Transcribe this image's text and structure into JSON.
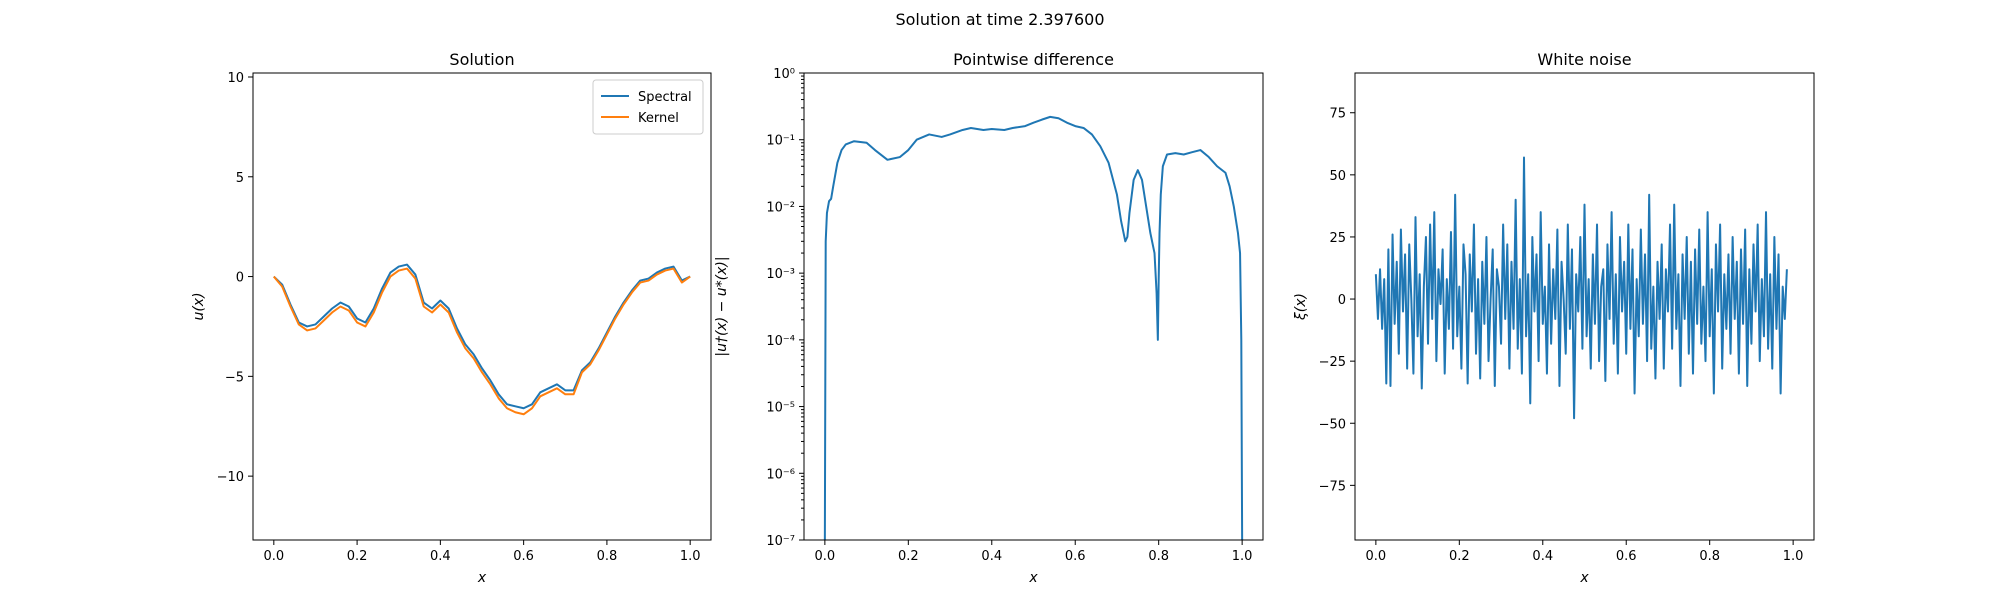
{
  "figure": {
    "title": "Solution at time 2.397600"
  },
  "chart_data": [
    {
      "type": "line",
      "title": "Solution",
      "xlabel": "x",
      "ylabel": "u(x)",
      "xlim": [
        -0.05,
        1.05
      ],
      "ylim": [
        -13.2,
        10.2
      ],
      "xticks": [
        0.0,
        0.2,
        0.4,
        0.6,
        0.8,
        1.0
      ],
      "xtick_labels": [
        "0.0",
        "0.2",
        "0.4",
        "0.6",
        "0.8",
        "1.0"
      ],
      "yticks": [
        -10,
        -5,
        0,
        5,
        10
      ],
      "ytick_labels": [
        "−10",
        "−5",
        "0",
        "5",
        "10"
      ],
      "grid": false,
      "legend": "top-right",
      "series": [
        {
          "name": "Spectral",
          "color": "#1f77b4",
          "x": [
            0.0,
            0.02,
            0.04,
            0.06,
            0.08,
            0.1,
            0.12,
            0.14,
            0.16,
            0.18,
            0.2,
            0.22,
            0.24,
            0.26,
            0.28,
            0.3,
            0.32,
            0.34,
            0.36,
            0.38,
            0.4,
            0.42,
            0.44,
            0.46,
            0.48,
            0.5,
            0.52,
            0.54,
            0.56,
            0.58,
            0.6,
            0.62,
            0.64,
            0.66,
            0.68,
            0.7,
            0.72,
            0.74,
            0.76,
            0.78,
            0.8,
            0.82,
            0.84,
            0.86,
            0.88,
            0.9,
            0.92,
            0.94,
            0.96,
            0.98,
            1.0
          ],
          "values": [
            0.0,
            -0.4,
            -1.4,
            -2.3,
            -2.5,
            -2.4,
            -2.0,
            -1.6,
            -1.3,
            -1.5,
            -2.1,
            -2.3,
            -1.6,
            -0.6,
            0.2,
            0.5,
            0.6,
            0.1,
            -1.3,
            -1.6,
            -1.2,
            -1.6,
            -2.6,
            -3.4,
            -3.9,
            -4.6,
            -5.2,
            -5.9,
            -6.4,
            -6.5,
            -6.6,
            -6.4,
            -5.8,
            -5.6,
            -5.4,
            -5.7,
            -5.7,
            -4.7,
            -4.3,
            -3.6,
            -2.8,
            -2.0,
            -1.3,
            -0.7,
            -0.2,
            -0.1,
            0.2,
            0.4,
            0.5,
            -0.2,
            0.0
          ]
        },
        {
          "name": "Kernel",
          "color": "#ff7f0e",
          "x": [
            0.0,
            0.02,
            0.04,
            0.06,
            0.08,
            0.1,
            0.12,
            0.14,
            0.16,
            0.18,
            0.2,
            0.22,
            0.24,
            0.26,
            0.28,
            0.3,
            0.32,
            0.34,
            0.36,
            0.38,
            0.4,
            0.42,
            0.44,
            0.46,
            0.48,
            0.5,
            0.52,
            0.54,
            0.56,
            0.58,
            0.6,
            0.62,
            0.64,
            0.66,
            0.68,
            0.7,
            0.72,
            0.74,
            0.76,
            0.78,
            0.8,
            0.82,
            0.84,
            0.86,
            0.88,
            0.9,
            0.92,
            0.94,
            0.96,
            0.98,
            1.0
          ],
          "values": [
            0.0,
            -0.5,
            -1.5,
            -2.4,
            -2.7,
            -2.6,
            -2.2,
            -1.8,
            -1.5,
            -1.7,
            -2.3,
            -2.5,
            -1.8,
            -0.8,
            0.0,
            0.3,
            0.4,
            -0.1,
            -1.5,
            -1.8,
            -1.4,
            -1.8,
            -2.8,
            -3.6,
            -4.1,
            -4.8,
            -5.4,
            -6.1,
            -6.6,
            -6.8,
            -6.9,
            -6.6,
            -6.0,
            -5.8,
            -5.6,
            -5.9,
            -5.9,
            -4.8,
            -4.4,
            -3.7,
            -2.9,
            -2.1,
            -1.4,
            -0.8,
            -0.3,
            -0.2,
            0.1,
            0.3,
            0.4,
            -0.3,
            0.0
          ]
        }
      ]
    },
    {
      "type": "line",
      "title": "Pointwise difference",
      "xlabel": "x",
      "ylabel": "|u†(x) − u*(x)|",
      "yscale": "log",
      "xlim": [
        -0.05,
        1.05
      ],
      "ylim": [
        1e-07,
        1
      ],
      "xticks": [
        0.0,
        0.2,
        0.4,
        0.6,
        0.8,
        1.0
      ],
      "xtick_labels": [
        "0.0",
        "0.2",
        "0.4",
        "0.6",
        "0.8",
        "1.0"
      ],
      "yticks": [
        1e-07,
        1e-06,
        1e-05,
        0.0001,
        0.001,
        0.01,
        0.1,
        1
      ],
      "ytick_labels": [
        "10⁻⁷",
        "10⁻⁶",
        "10⁻⁵",
        "10⁻⁴",
        "10⁻³",
        "10⁻²",
        "10⁻¹",
        "10⁰"
      ],
      "grid": false,
      "series": [
        {
          "color": "#1f77b4",
          "x": [
            0.0,
            0.002,
            0.005,
            0.01,
            0.015,
            0.02,
            0.03,
            0.04,
            0.05,
            0.07,
            0.1,
            0.12,
            0.15,
            0.18,
            0.2,
            0.22,
            0.25,
            0.28,
            0.3,
            0.33,
            0.35,
            0.38,
            0.4,
            0.43,
            0.45,
            0.48,
            0.5,
            0.52,
            0.54,
            0.56,
            0.58,
            0.6,
            0.62,
            0.64,
            0.66,
            0.68,
            0.7,
            0.71,
            0.72,
            0.725,
            0.73,
            0.74,
            0.75,
            0.76,
            0.77,
            0.78,
            0.79,
            0.795,
            0.798,
            0.8,
            0.802,
            0.805,
            0.81,
            0.82,
            0.84,
            0.86,
            0.88,
            0.9,
            0.92,
            0.94,
            0.96,
            0.97,
            0.98,
            0.99,
            0.995,
            0.998,
            1.0
          ],
          "values": [
            1e-07,
            0.003,
            0.008,
            0.012,
            0.013,
            0.02,
            0.045,
            0.07,
            0.085,
            0.095,
            0.09,
            0.07,
            0.05,
            0.055,
            0.07,
            0.1,
            0.12,
            0.11,
            0.12,
            0.14,
            0.15,
            0.14,
            0.145,
            0.14,
            0.15,
            0.16,
            0.18,
            0.2,
            0.22,
            0.21,
            0.18,
            0.16,
            0.15,
            0.12,
            0.08,
            0.045,
            0.015,
            0.006,
            0.003,
            0.0035,
            0.008,
            0.025,
            0.035,
            0.025,
            0.01,
            0.004,
            0.002,
            0.0005,
            0.0001,
            0.0008,
            0.004,
            0.015,
            0.04,
            0.06,
            0.063,
            0.06,
            0.065,
            0.07,
            0.055,
            0.04,
            0.032,
            0.02,
            0.01,
            0.004,
            0.002,
            0.0001,
            1e-07
          ]
        }
      ]
    },
    {
      "type": "line",
      "title": "White noise",
      "xlabel": "x",
      "ylabel": "ξ(x)",
      "xlim": [
        -0.05,
        1.05
      ],
      "ylim": [
        -97,
        91
      ],
      "xticks": [
        0.0,
        0.2,
        0.4,
        0.6,
        0.8,
        1.0
      ],
      "xtick_labels": [
        "0.0",
        "0.2",
        "0.4",
        "0.6",
        "0.8",
        "1.0"
      ],
      "yticks": [
        -75,
        -50,
        -25,
        0,
        25,
        50,
        75
      ],
      "ytick_labels": [
        "−75",
        "−50",
        "−25",
        "0",
        "25",
        "50",
        "75"
      ],
      "grid": false,
      "series": [
        {
          "color": "#1f77b4",
          "x_start": 0.0,
          "x_step": 0.005,
          "values": [
            10,
            -8,
            12,
            -12,
            8,
            -34,
            20,
            -35,
            26,
            -10,
            15,
            -22,
            28,
            -5,
            18,
            -28,
            22,
            0,
            -30,
            33,
            -15,
            10,
            -36,
            5,
            25,
            -18,
            30,
            -8,
            35,
            -25,
            12,
            -2,
            20,
            -30,
            8,
            -12,
            27,
            -20,
            42,
            -15,
            5,
            -28,
            22,
            10,
            -34,
            18,
            -5,
            30,
            -22,
            8,
            -32,
            15,
            -10,
            25,
            -25,
            0,
            20,
            -35,
            12,
            5,
            -18,
            30,
            -8,
            22,
            -28,
            15,
            -12,
            40,
            -20,
            8,
            -30,
            57,
            -15,
            10,
            -42,
            25,
            -5,
            18,
            -25,
            35,
            -10,
            5,
            -30,
            22,
            -18,
            12,
            -8,
            28,
            -35,
            15,
            0,
            -22,
            30,
            -12,
            20,
            -48,
            10,
            -5,
            25,
            -20,
            38,
            -15,
            8,
            -28,
            18,
            -10,
            30,
            -25,
            5,
            12,
            -33,
            22,
            -8,
            35,
            -18,
            10,
            -30,
            25,
            -5,
            15,
            -22,
            30,
            -12,
            20,
            -38,
            8,
            -15,
            28,
            -10,
            18,
            -25,
            42,
            -20,
            5,
            -32,
            15,
            -8,
            22,
            -28,
            12,
            -5,
            30,
            -20,
            38,
            -12,
            10,
            -35,
            18,
            -8,
            25,
            -22,
            15,
            -30,
            20,
            -10,
            28,
            -18,
            5,
            -25,
            35,
            -15,
            12,
            -38,
            22,
            -5,
            30,
            -28,
            10,
            -12,
            18,
            -22,
            25,
            -8,
            15,
            -30,
            20,
            -10,
            28,
            -35,
            12,
            -18,
            22,
            -5,
            30,
            -25,
            8,
            -15,
            35,
            -20,
            10,
            -28,
            25,
            -12,
            18,
            -38,
            5,
            -8,
            12
          ]
        }
      ]
    }
  ]
}
